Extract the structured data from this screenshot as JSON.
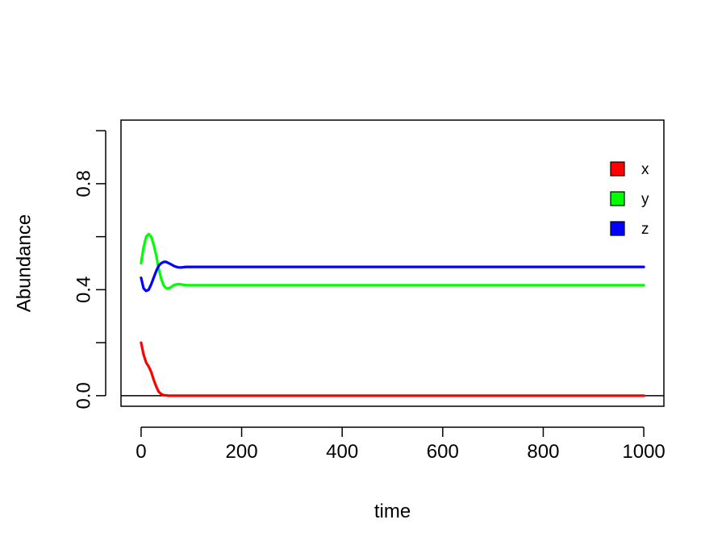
{
  "chart_data": {
    "type": "line",
    "xlabel": "time",
    "ylabel": "Abundance",
    "xlim": [
      -40,
      1040
    ],
    "ylim": [
      -0.04,
      1.04
    ],
    "x_ticks": [
      0,
      200,
      400,
      600,
      800,
      1000
    ],
    "x_tick_labels": [
      "0",
      "200",
      "400",
      "600",
      "800",
      "1000"
    ],
    "y_ticks": [
      0.0,
      0.2,
      0.4,
      0.6,
      0.8,
      1.0
    ],
    "y_tick_labels": [
      "0.0",
      "",
      "0.4",
      "",
      "0.8",
      ""
    ],
    "hline": 0,
    "legend_position": "top-right",
    "series": [
      {
        "name": "x",
        "color": "#ff0000",
        "x": [
          0,
          5,
          10,
          15,
          20,
          25,
          30,
          35,
          40,
          45,
          50,
          55,
          60,
          70,
          80,
          100,
          1000
        ],
        "y": [
          0.2,
          0.155,
          0.125,
          0.11,
          0.09,
          0.06,
          0.035,
          0.015,
          0.006,
          0.002,
          0.001,
          0.0,
          0.0,
          0.0,
          0.0,
          0.0,
          0.0
        ]
      },
      {
        "name": "y",
        "color": "#00ff00",
        "x": [
          0,
          5,
          10,
          15,
          20,
          25,
          30,
          35,
          40,
          45,
          50,
          55,
          60,
          65,
          70,
          75,
          80,
          85,
          90,
          100,
          110,
          120,
          1000
        ],
        "y": [
          0.5,
          0.56,
          0.6,
          0.61,
          0.6,
          0.57,
          0.53,
          0.48,
          0.44,
          0.415,
          0.405,
          0.405,
          0.41,
          0.417,
          0.42,
          0.421,
          0.42,
          0.418,
          0.417,
          0.417,
          0.417,
          0.417,
          0.417
        ]
      },
      {
        "name": "z",
        "color": "#0000ff",
        "x": [
          0,
          5,
          10,
          15,
          20,
          25,
          30,
          35,
          40,
          45,
          50,
          55,
          60,
          65,
          70,
          75,
          80,
          85,
          90,
          100,
          120,
          1000
        ],
        "y": [
          0.445,
          0.405,
          0.395,
          0.4,
          0.42,
          0.445,
          0.47,
          0.49,
          0.5,
          0.505,
          0.505,
          0.5,
          0.495,
          0.49,
          0.486,
          0.484,
          0.484,
          0.485,
          0.486,
          0.486,
          0.486,
          0.486
        ]
      }
    ]
  }
}
